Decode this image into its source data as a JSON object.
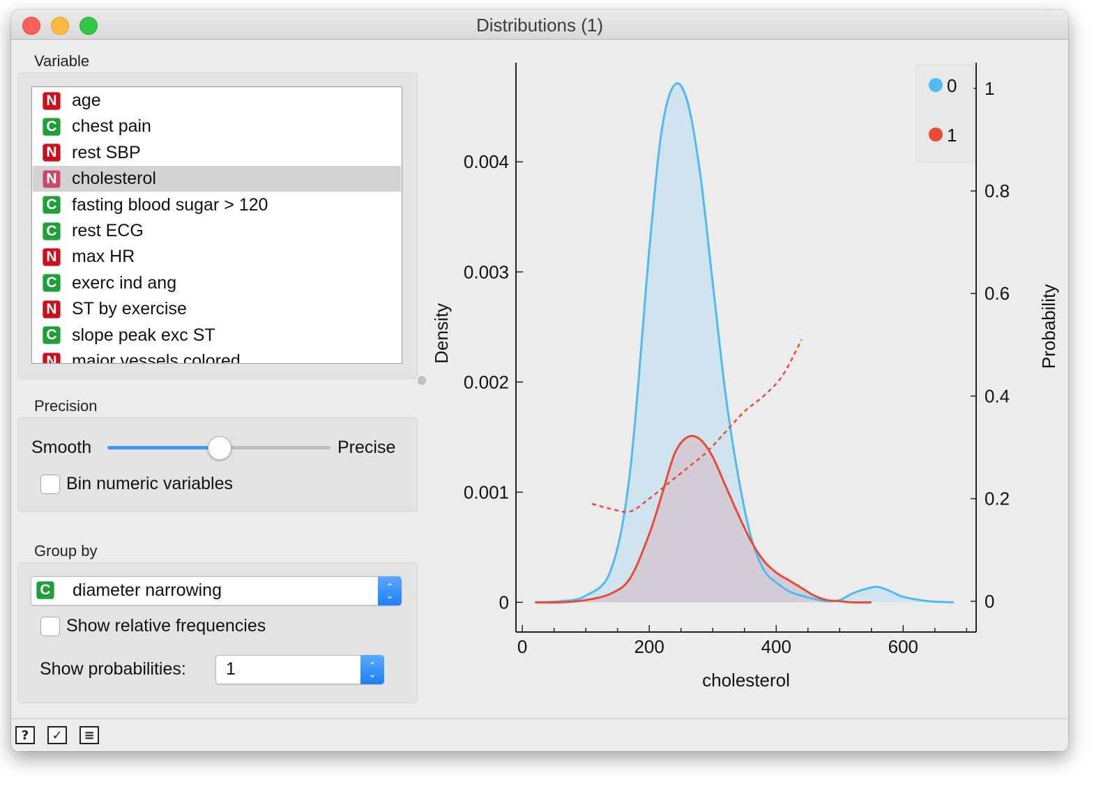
{
  "window": {
    "title": "Distributions (1)"
  },
  "variable": {
    "label": "Variable",
    "items": [
      {
        "type": "N",
        "name": "age"
      },
      {
        "type": "C",
        "name": "chest pain"
      },
      {
        "type": "N",
        "name": "rest SBP"
      },
      {
        "type": "N",
        "name": "cholesterol",
        "selected": true
      },
      {
        "type": "C",
        "name": "fasting blood sugar > 120"
      },
      {
        "type": "C",
        "name": "rest ECG"
      },
      {
        "type": "N",
        "name": "max HR"
      },
      {
        "type": "C",
        "name": "exerc ind ang"
      },
      {
        "type": "N",
        "name": "ST by exercise"
      },
      {
        "type": "C",
        "name": "slope peak exc ST"
      },
      {
        "type": "N",
        "name": "major vessels colored"
      }
    ]
  },
  "precision": {
    "label": "Precision",
    "smooth_label": "Smooth",
    "precise_label": "Precise",
    "slider_value": 0.5,
    "bin_label": "Bin numeric variables",
    "bin_checked": false
  },
  "group_by": {
    "label": "Group by",
    "type_badge": "C",
    "selected": "diameter narrowing",
    "relative_label": "Show relative frequencies",
    "relative_checked": false,
    "prob_label": "Show probabilities:",
    "prob_value": "1"
  },
  "colors": {
    "numeric_badge": "#c9101e",
    "categorical_badge": "#1f9e3a",
    "selected_numeric_badge": "#c8496a",
    "series0": "#4fbaf0",
    "series1": "#e84a36",
    "fill0": "#cfe4ef",
    "fill1": "#d3c8d2",
    "slider_accent": "#3b99fc"
  },
  "statusbar": {
    "icons": [
      "help-icon",
      "report-icon",
      "save-graph-icon"
    ]
  },
  "chart_data": {
    "type": "line",
    "xlabel": "cholesterol",
    "ylabel": "Density",
    "y2label": "Probability",
    "xlim": [
      -10,
      715
    ],
    "ylim": [
      -0.00027,
      0.0049
    ],
    "y2lim": [
      -0.06,
      1.05
    ],
    "xticks": [
      0,
      200,
      400,
      600
    ],
    "xtick_labels": [
      "0",
      "200",
      "400",
      "600"
    ],
    "yticks": [
      0,
      0.001,
      0.002,
      0.003,
      0.004
    ],
    "ytick_labels": [
      "0",
      "0.001",
      "0.002",
      "0.003",
      "0.004"
    ],
    "y2ticks": [
      0,
      0.2,
      0.4,
      0.6,
      0.8,
      1
    ],
    "y2tick_labels": [
      "0",
      "0.2",
      "0.4",
      "0.6",
      "0.8",
      "1"
    ],
    "legend": {
      "position": "top-right",
      "entries": [
        "0",
        "1"
      ]
    },
    "series": [
      {
        "name": "0",
        "kind": "density",
        "filled": true,
        "x": [
          20,
          60,
          100,
          140,
          170,
          200,
          220,
          240,
          260,
          280,
          300,
          320,
          340,
          360,
          380,
          400,
          420,
          440,
          460,
          480,
          500,
          520,
          540,
          560,
          580,
          600,
          640,
          680
        ],
        "y": [
          0.0,
          1e-05,
          6e-05,
          0.0003,
          0.0012,
          0.0032,
          0.0043,
          0.0047,
          0.00455,
          0.0039,
          0.0029,
          0.0019,
          0.00115,
          0.0006,
          0.0003,
          0.00018,
          0.0001,
          6e-05,
          3e-05,
          1e-05,
          2e-05,
          8e-05,
          0.00012,
          0.00014,
          0.0001,
          5e-05,
          1e-05,
          0.0
        ]
      },
      {
        "name": "1",
        "kind": "density",
        "filled": true,
        "x": [
          20,
          60,
          100,
          140,
          170,
          200,
          220,
          240,
          260,
          280,
          300,
          320,
          340,
          360,
          380,
          400,
          420,
          440,
          460,
          480,
          500,
          520,
          550
        ],
        "y": [
          0.0,
          0.0,
          2e-05,
          8e-05,
          0.00022,
          0.00062,
          0.00098,
          0.00135,
          0.0015,
          0.00148,
          0.00132,
          0.00106,
          0.0008,
          0.00056,
          0.00038,
          0.00027,
          0.0002,
          0.00013,
          6e-05,
          2e-05,
          1e-05,
          0.0,
          0.0
        ]
      },
      {
        "name": "1",
        "kind": "probability",
        "axis": "y2",
        "dashed": true,
        "x": [
          110,
          140,
          170,
          200,
          230,
          260,
          290,
          320,
          350,
          380,
          410,
          440
        ],
        "y": [
          0.19,
          0.18,
          0.175,
          0.2,
          0.23,
          0.26,
          0.29,
          0.33,
          0.37,
          0.4,
          0.44,
          0.51
        ]
      }
    ]
  }
}
